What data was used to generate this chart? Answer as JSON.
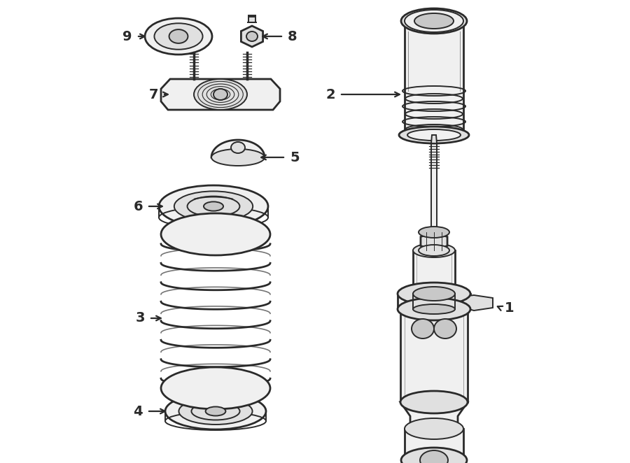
{
  "bg_color": "#ffffff",
  "line_color": "#2a2a2a",
  "fill_light": "#f0f0f0",
  "fill_mid": "#e0e0e0",
  "fill_dark": "#c8c8c8",
  "lw_main": 1.4,
  "lw_thick": 2.0,
  "label_fontsize": 14,
  "figsize": [
    9.0,
    6.62
  ],
  "dpi": 100
}
